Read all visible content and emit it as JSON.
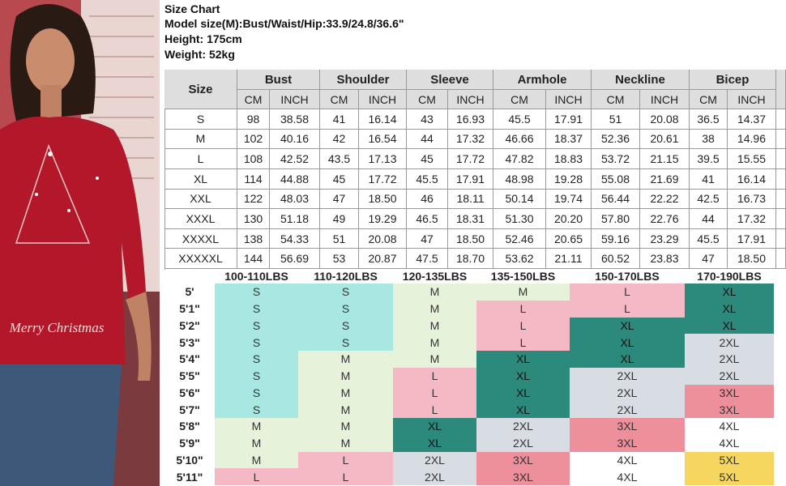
{
  "header": {
    "lines": [
      "Size Chart",
      "Model size(M):Bust/Waist/Hip:33.9/24.8/36.6\"",
      "Height: 175cm",
      "Weight: 52kg"
    ]
  },
  "photo": {
    "shirt_text": "Merry Christmas"
  },
  "measure_table": {
    "size_header": "Size",
    "groups": [
      "Bust",
      "Shoulder",
      "Sleeve",
      "Armhole",
      "Neckline",
      "Bicep"
    ],
    "units": [
      "CM",
      "INCH"
    ],
    "rows": [
      [
        "S",
        "98",
        "38.58",
        "41",
        "16.14",
        "43",
        "16.93",
        "45.5",
        "17.91",
        "51",
        "20.08",
        "36.5",
        "14.37"
      ],
      [
        "M",
        "102",
        "40.16",
        "42",
        "16.54",
        "44",
        "17.32",
        "46.66",
        "18.37",
        "52.36",
        "20.61",
        "38",
        "14.96"
      ],
      [
        "L",
        "108",
        "42.52",
        "43.5",
        "17.13",
        "45",
        "17.72",
        "47.82",
        "18.83",
        "53.72",
        "21.15",
        "39.5",
        "15.55"
      ],
      [
        "XL",
        "114",
        "44.88",
        "45",
        "17.72",
        "45.5",
        "17.91",
        "48.98",
        "19.28",
        "55.08",
        "21.69",
        "41",
        "16.14"
      ],
      [
        "XXL",
        "122",
        "48.03",
        "47",
        "18.50",
        "46",
        "18.11",
        "50.14",
        "19.74",
        "56.44",
        "22.22",
        "42.5",
        "16.73"
      ],
      [
        "XXXL",
        "130",
        "51.18",
        "49",
        "19.29",
        "46.5",
        "18.31",
        "51.30",
        "20.20",
        "57.80",
        "22.76",
        "44",
        "17.32"
      ],
      [
        "XXXXL",
        "138",
        "54.33",
        "51",
        "20.08",
        "47",
        "18.50",
        "52.46",
        "20.65",
        "59.16",
        "23.29",
        "45.5",
        "17.91"
      ],
      [
        "XXXXXL",
        "144",
        "56.69",
        "53",
        "20.87",
        "47.5",
        "18.70",
        "53.62",
        "21.11",
        "60.52",
        "23.83",
        "47",
        "18.50"
      ]
    ]
  },
  "fit_table": {
    "weights": [
      "100-110LBS",
      "110-120LBS",
      "120-135LBS",
      "135-150LBS",
      "150-170LBS",
      "170-190LBS"
    ],
    "heights": [
      "5'",
      "5'1\"",
      "5'2\"",
      "5'3\"",
      "5'4\"",
      "5'5\"",
      "5'6\"",
      "5'7\"",
      "5'8\"",
      "5'9\"",
      "5'10\"",
      "5'11\""
    ],
    "rows": [
      [
        "S",
        "S",
        "M",
        "M",
        "L",
        "XL"
      ],
      [
        "S",
        "S",
        "M",
        "L",
        "L",
        "XL"
      ],
      [
        "S",
        "S",
        "M",
        "L",
        "XL",
        "XL"
      ],
      [
        "S",
        "S",
        "M",
        "L",
        "XL",
        "2XL"
      ],
      [
        "S",
        "M",
        "M",
        "XL",
        "XL",
        "2XL"
      ],
      [
        "S",
        "M",
        "L",
        "XL",
        "2XL",
        "2XL"
      ],
      [
        "S",
        "M",
        "L",
        "XL",
        "2XL",
        "3XL"
      ],
      [
        "S",
        "M",
        "L",
        "XL",
        "2XL",
        "3XL"
      ],
      [
        "M",
        "M",
        "XL",
        "2XL",
        "3XL",
        "4XL"
      ],
      [
        "M",
        "M",
        "XL",
        "2XL",
        "3XL",
        "4XL"
      ],
      [
        "M",
        "L",
        "2XL",
        "3XL",
        "4XL",
        "5XL"
      ],
      [
        "L",
        "L",
        "2XL",
        "3XL",
        "4XL",
        "5XL"
      ]
    ],
    "colors": {
      "S": "#a9e8e2",
      "M": "#e6f2da",
      "L": "#f4b9c4",
      "XL": "#2b8a7c",
      "2XL": "#d8dce3",
      "3XL": "#ee8f9c",
      "4XL": "#ffffff",
      "5XL": "#f6d65e"
    }
  }
}
